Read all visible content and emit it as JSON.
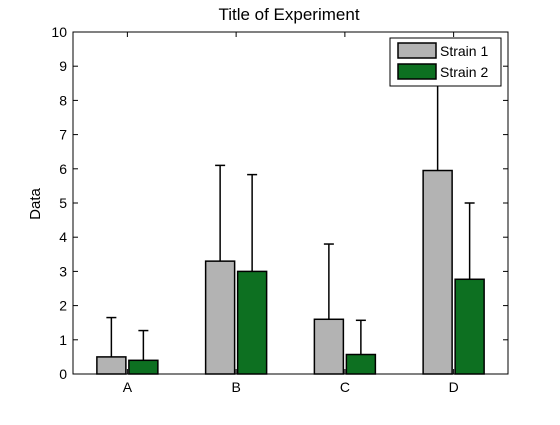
{
  "chart_data": {
    "type": "bar",
    "title": "Title of Experiment",
    "xlabel": "",
    "ylabel": "Data",
    "categories": [
      "A",
      "B",
      "C",
      "D"
    ],
    "ylim": [
      0,
      10
    ],
    "yticks": [
      "0",
      "1",
      "2",
      "3",
      "4",
      "5",
      "6",
      "7",
      "8",
      "9",
      "10"
    ],
    "grid": false,
    "error_bars": "upper",
    "legend_position": "top-right",
    "series": [
      {
        "name": "Strain 1",
        "color": "#b3b3b3",
        "values": [
          0.5,
          3.3,
          1.6,
          5.95
        ],
        "errors": [
          1.15,
          2.8,
          2.2,
          2.75
        ]
      },
      {
        "name": "Strain 2",
        "color": "#0d7021",
        "values": [
          0.4,
          3.0,
          0.57,
          2.77
        ],
        "errors": [
          0.87,
          2.83,
          1.0,
          2.23
        ]
      }
    ]
  }
}
